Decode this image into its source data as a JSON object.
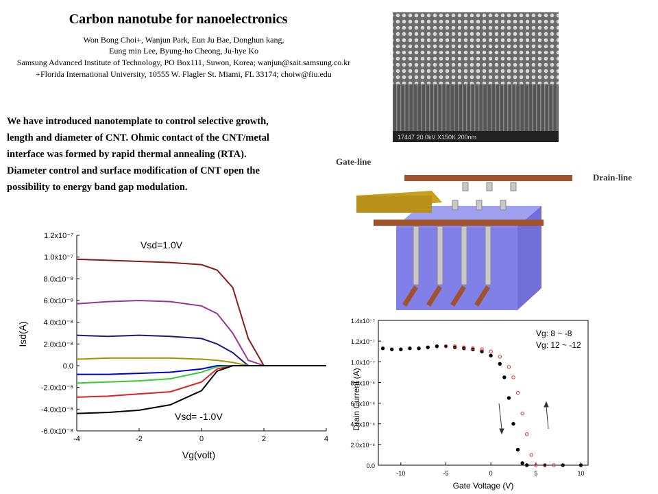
{
  "header": {
    "title": "Carbon nanotube for nanoelectronics",
    "authors": [
      "Won Bong Choi+, Wanjun Park, Eun Ju Bae, Donghun kang,",
      "Eung min Lee, Byung-ho Cheong, Ju-hye Ko",
      "Samsung Advanced Institute of Technology, PO Box111, Suwon, Korea; wanjun@sait.samsung.co.kr",
      "+Florida International University, 10555 W. Flagler St. Miami, FL 33174; choiw@fiu.edu"
    ]
  },
  "body": {
    "lines": [
      "We have introduced nanotemplate to control selective growth,",
      "length and diameter of CNT. Ohmic contact of the CNT/metal",
      "interface was formed by rapid thermal annealing (RTA).",
      "Diameter control and surface modification of CNT open the",
      "possibility to energy band gap modulation."
    ]
  },
  "photo": {
    "caption": "17447 20.0kV X150K 200nm"
  },
  "diagram": {
    "gate_label": "Gate-line",
    "drain_label": "Drain-line"
  },
  "chart_data": [
    {
      "type": "line",
      "xlabel": "Vg(volt)",
      "ylabel": "Isd(A)",
      "annotations": [
        "Vsd=1.0V",
        "Vsd= -1.0V"
      ],
      "xlim": [
        -4,
        4
      ],
      "ylim": [
        -6e-08,
        1.2e-07
      ],
      "xticks": [
        -4,
        -2,
        0,
        2,
        4
      ],
      "yticks": [
        {
          "value": 1.2e-07,
          "label": "1.2x10⁻⁷"
        },
        {
          "value": 1e-07,
          "label": "1.0x10⁻⁷"
        },
        {
          "value": 8e-08,
          "label": "8.0x10⁻⁸"
        },
        {
          "value": 6e-08,
          "label": "6.0x10⁻⁸"
        },
        {
          "value": 4e-08,
          "label": "4.0x10⁻⁸"
        },
        {
          "value": 2e-08,
          "label": "2.0x10⁻⁸"
        },
        {
          "value": 0,
          "label": "0.0"
        },
        {
          "value": -2e-08,
          "label": "-2.0x10⁻⁸"
        },
        {
          "value": -4e-08,
          "label": "-4.0x10⁻⁸"
        },
        {
          "value": -6e-08,
          "label": "-6.0x10⁻⁸"
        }
      ],
      "x": [
        -4,
        -3,
        -2,
        -1,
        0,
        0.5,
        1,
        1.5,
        2,
        3,
        4
      ],
      "series": [
        {
          "color": "#8b1a1a",
          "values": [
            9.8e-08,
            9.7e-08,
            9.6e-08,
            9.5e-08,
            9.3e-08,
            8.8e-08,
            7.2e-08,
            2.5e-08,
            0,
            0,
            0
          ]
        },
        {
          "color": "#993399",
          "values": [
            5.7e-08,
            5.9e-08,
            6e-08,
            5.9e-08,
            5.5e-08,
            4.8e-08,
            3e-08,
            5e-09,
            0,
            0,
            0
          ]
        },
        {
          "color": "#1a1a80",
          "values": [
            2.8e-08,
            2.7e-08,
            2.8e-08,
            2.7e-08,
            2.5e-08,
            2e-08,
            1.2e-08,
            0,
            0,
            0,
            0
          ]
        },
        {
          "color": "#999900",
          "values": [
            6e-09,
            7e-09,
            7e-09,
            7e-09,
            6e-09,
            5e-09,
            3e-09,
            0,
            0,
            0,
            0
          ]
        },
        {
          "color": "#0000cc",
          "values": [
            -8e-09,
            -8e-09,
            -7e-09,
            -6e-09,
            -3e-09,
            0,
            0,
            0,
            0,
            0,
            0
          ]
        },
        {
          "color": "#33cc33",
          "values": [
            -1.6e-08,
            -1.5e-08,
            -1.4e-08,
            -1.2e-08,
            -6e-09,
            -1e-09,
            0,
            0,
            0,
            0,
            0
          ]
        },
        {
          "color": "#e02020",
          "values": [
            -2.9e-08,
            -2.8e-08,
            -2.6e-08,
            -2.4e-08,
            -1.5e-08,
            -3e-09,
            0,
            0,
            0,
            0,
            0
          ]
        },
        {
          "color": "#000000",
          "values": [
            -4.4e-08,
            -4.3e-08,
            -4.1e-08,
            -3.6e-08,
            -2.3e-08,
            -5e-09,
            0,
            0,
            0,
            0,
            0
          ]
        }
      ]
    },
    {
      "type": "scatter",
      "xlabel": "Gate Voltage (V)",
      "ylabel": "Drain Current (A)",
      "annotations": [
        "Vg: 8 ~ -8",
        "Vg: 12 ~ -12"
      ],
      "xlim": [
        -12.5,
        10.8
      ],
      "ylim": [
        0,
        1.4e-07
      ],
      "xticks": [
        -10,
        -5,
        0,
        5,
        10
      ],
      "yticks": [
        {
          "value": 1.4e-07,
          "label": "1.4x10⁻⁷"
        },
        {
          "value": 1.2e-07,
          "label": "1.2x10⁻⁷"
        },
        {
          "value": 1e-07,
          "label": "1.0x10⁻⁷"
        },
        {
          "value": 8e-08,
          "label": "8.0x10⁻⁸"
        },
        {
          "value": 6e-08,
          "label": "6.0x10⁻⁸"
        },
        {
          "value": 4e-08,
          "label": "4.0x10⁻⁸"
        },
        {
          "value": 2e-08,
          "label": "2.0x10⁻⁸"
        },
        {
          "value": 0,
          "label": "0.0"
        }
      ],
      "series": [
        {
          "color": "#000000",
          "x": [
            -12,
            -11,
            -10,
            -9,
            -8,
            -7,
            -6,
            -5,
            -4,
            -3,
            -2,
            -1,
            0,
            1,
            1.5,
            2,
            2.5,
            3,
            3.5,
            4,
            6,
            8,
            10
          ],
          "values": [
            1.13e-07,
            1.12e-07,
            1.12e-07,
            1.13e-07,
            1.13e-07,
            1.14e-07,
            1.15e-07,
            1.15e-07,
            1.14e-07,
            1.13e-07,
            1.12e-07,
            1.1e-07,
            1.06e-07,
            9.8e-08,
            8.5e-08,
            6.5e-08,
            4e-08,
            1.5e-08,
            2e-09,
            0,
            0,
            0,
            0
          ]
        },
        {
          "color": "#e03030",
          "x": [
            -5,
            -4,
            -3,
            -2,
            -1,
            0,
            1,
            2,
            2.5,
            3,
            3.5,
            4,
            4.5,
            5,
            6,
            7
          ],
          "values": [
            1.15e-07,
            1.15e-07,
            1.14e-07,
            1.13e-07,
            1.12e-07,
            1.1e-07,
            1.05e-07,
            9.5e-08,
            8.5e-08,
            7e-08,
            5e-08,
            3e-08,
            1e-08,
            0,
            0,
            0
          ]
        }
      ]
    }
  ]
}
